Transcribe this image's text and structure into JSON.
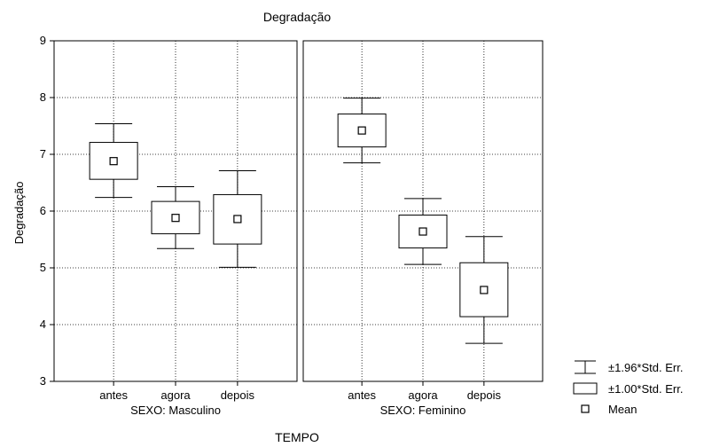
{
  "chart_data": {
    "type": "box",
    "title": "Degradação",
    "ylabel": "Degradação",
    "xlabel": "TEMPO",
    "ylim": [
      3,
      9
    ],
    "yticks": [
      3,
      4,
      5,
      6,
      7,
      8,
      9
    ],
    "grid": true,
    "categories": [
      "antes",
      "agora",
      "depois"
    ],
    "panels": [
      {
        "label": "SEXO: Masculino",
        "groups": [
          {
            "category": "antes",
            "mean": 6.88,
            "se1_low": 6.56,
            "se1_high": 7.21,
            "se196_low": 6.24,
            "se196_high": 7.54
          },
          {
            "category": "agora",
            "mean": 5.88,
            "se1_low": 5.6,
            "se1_high": 6.17,
            "se196_low": 5.34,
            "se196_high": 6.43
          },
          {
            "category": "depois",
            "mean": 5.86,
            "se1_low": 5.42,
            "se1_high": 6.29,
            "se196_low": 5.01,
            "se196_high": 6.71
          }
        ]
      },
      {
        "label": "SEXO: Feminino",
        "groups": [
          {
            "category": "antes",
            "mean": 7.42,
            "se1_low": 7.13,
            "se1_high": 7.71,
            "se196_low": 6.85,
            "se196_high": 7.99
          },
          {
            "category": "agora",
            "mean": 5.64,
            "se1_low": 5.35,
            "se1_high": 5.93,
            "se196_low": 5.06,
            "se196_high": 6.22
          },
          {
            "category": "depois",
            "mean": 4.61,
            "se1_low": 4.14,
            "se1_high": 5.09,
            "se196_low": 3.67,
            "se196_high": 5.55
          }
        ]
      }
    ],
    "legend": {
      "placement": "bottom-right",
      "entries": [
        {
          "symbol": "whisker",
          "label": "±1.96*Std. Err."
        },
        {
          "symbol": "box",
          "label": "±1.00*Std. Err."
        },
        {
          "symbol": "mean",
          "label": "Mean"
        }
      ]
    }
  }
}
